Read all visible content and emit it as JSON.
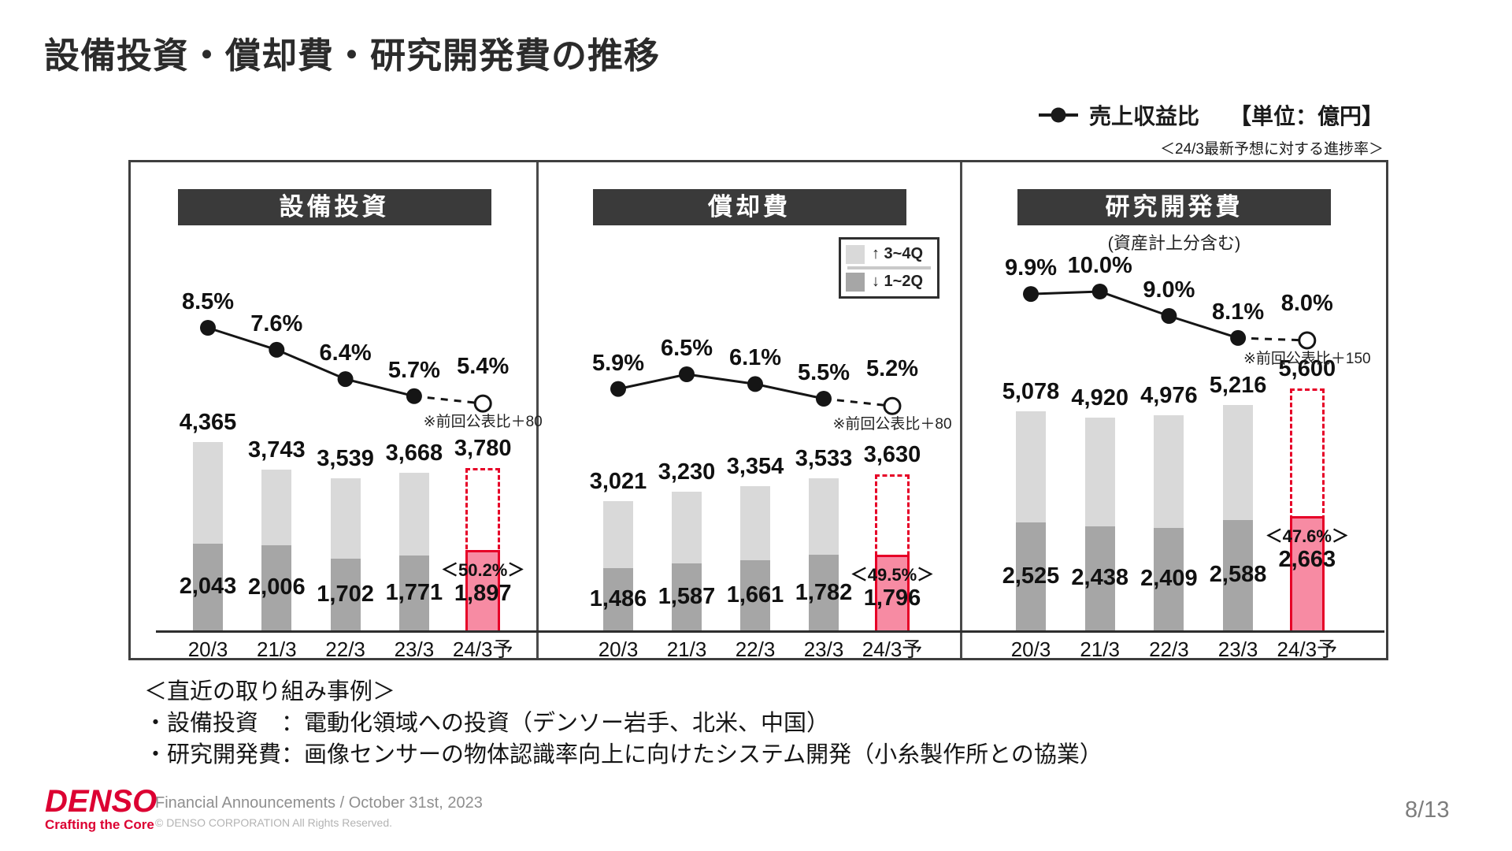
{
  "slide": {
    "title": "設備投資・償却費・研究開発費の推移",
    "legend": {
      "line_label": "売上収益比",
      "unit_label": "【単位：億円】",
      "sub_note": "＜24/3最新予想に対する進捗率＞"
    },
    "bar_legend": {
      "up_label": "↑ 3~4Q",
      "down_label": "↓ 1~2Q"
    },
    "initiatives": {
      "heading": "＜直近の取り組み事例＞",
      "items": [
        "・設備投資　：電動化領域への投資（デンソー岩手、北米、中国）",
        "・研究開発費：画像センサーの物体認識率向上に向けたシステム開発（小糸製作所との協業）"
      ]
    },
    "footer": {
      "logo_text": "DENSO",
      "logo_tagline": "Crafting the Core",
      "event": "Financial Announcements / October 31st, 2023",
      "copyright": "© DENSO CORPORATION All Rights Reserved.",
      "page": "8/13"
    },
    "colors": {
      "denso_red": "#dc0032",
      "accent_red": "#e60027",
      "pink_fill": "#f78ba3",
      "bar_light": "#d9d9d9",
      "bar_dark": "#a6a6a6",
      "header_bg": "#3a3a3a"
    }
  },
  "chart_data": [
    {
      "type": "bar+line",
      "title": "設備投資",
      "subtitle": "",
      "unit": "億円",
      "categories": [
        "20/3",
        "21/3",
        "22/3",
        "23/3",
        "24/3予"
      ],
      "totals": [
        4365,
        3743,
        3539,
        3668,
        3780
      ],
      "first_half": [
        2043,
        2006,
        1702,
        1771,
        1897
      ],
      "line_name": "売上収益比",
      "line_pct": [
        8.5,
        7.6,
        6.4,
        5.7,
        5.4
      ],
      "forecast_index": 4,
      "forecast_progress": "＜50.2%＞",
      "forecast_note": "※前回公表比＋80"
    },
    {
      "type": "bar+line",
      "title": "償却費",
      "subtitle": "",
      "unit": "億円",
      "categories": [
        "20/3",
        "21/3",
        "22/3",
        "23/3",
        "24/3予"
      ],
      "totals": [
        3021,
        3230,
        3354,
        3533,
        3630
      ],
      "first_half": [
        1486,
        1587,
        1661,
        1782,
        1796
      ],
      "line_name": "売上収益比",
      "line_pct": [
        5.9,
        6.5,
        6.1,
        5.5,
        5.2
      ],
      "forecast_index": 4,
      "forecast_progress": "＜49.5%＞",
      "forecast_note": "※前回公表比＋80"
    },
    {
      "type": "bar+line",
      "title": "研究開発費",
      "subtitle": "(資産計上分含む)",
      "unit": "億円",
      "categories": [
        "20/3",
        "21/3",
        "22/3",
        "23/3",
        "24/3予"
      ],
      "totals": [
        5078,
        4920,
        4976,
        5216,
        5600
      ],
      "first_half": [
        2525,
        2438,
        2409,
        2588,
        2663
      ],
      "line_name": "売上収益比",
      "line_pct": [
        9.9,
        10.0,
        9.0,
        8.1,
        8.0
      ],
      "forecast_index": 4,
      "forecast_progress": "＜47.6%＞",
      "forecast_note": "※前回公表比＋150"
    }
  ]
}
